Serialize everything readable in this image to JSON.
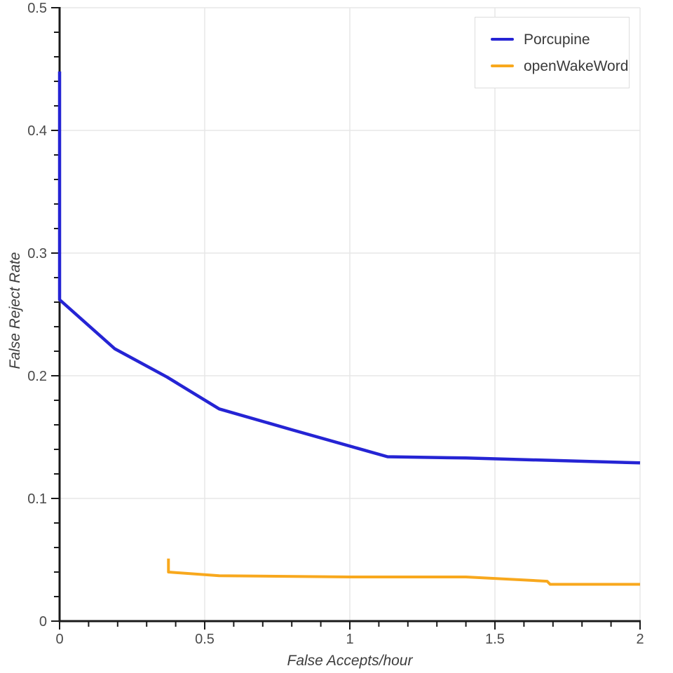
{
  "figure": {
    "background_color": "#ffffff",
    "axis_color": "#1a1a1a",
    "grid_color": "#e7e7e7",
    "tick_label_color": "#4a4a4a",
    "axis_title_color": "#3d3d3d",
    "legend_border_color": "#dddddd",
    "legend_text_color": "#3a3a3a"
  },
  "chart_data": {
    "type": "line",
    "title": "",
    "xlabel": "False Accepts/hour",
    "ylabel": "False Reject Rate",
    "xlim": [
      0,
      2
    ],
    "ylim": [
      0,
      0.5
    ],
    "grid": true,
    "legend_position": "top-right",
    "x_major_ticks": [
      0,
      0.5,
      1,
      1.5,
      2
    ],
    "x_tick_labels": [
      "0",
      "0.5",
      "1",
      "1.5",
      "2"
    ],
    "x_minor_tick_step": 0.1,
    "y_major_ticks": [
      0,
      0.1,
      0.2,
      0.3,
      0.4,
      0.5
    ],
    "y_tick_labels": [
      "0",
      "0.1",
      "0.2",
      "0.3",
      "0.4",
      "0.5"
    ],
    "y_minor_tick_step": 0.02,
    "series": [
      {
        "name": "Porcupine",
        "color": "#2524d4",
        "line_width": 4.5,
        "points": [
          [
            0,
            0.448
          ],
          [
            0,
            0.262
          ],
          [
            0.19,
            0.222
          ],
          [
            0.37,
            0.199
          ],
          [
            0.55,
            0.173
          ],
          [
            0.8,
            0.156
          ],
          [
            1.13,
            0.134
          ],
          [
            1.4,
            0.133
          ],
          [
            2,
            0.129
          ]
        ]
      },
      {
        "name": "openWakeWord",
        "color": "#f8a81d",
        "line_width": 4,
        "points": [
          [
            0.375,
            0.051
          ],
          [
            0.375,
            0.04
          ],
          [
            0.55,
            0.037
          ],
          [
            1.0,
            0.036
          ],
          [
            1.4,
            0.036
          ],
          [
            1.68,
            0.0325
          ],
          [
            1.69,
            0.03
          ],
          [
            2,
            0.03
          ]
        ]
      }
    ]
  }
}
